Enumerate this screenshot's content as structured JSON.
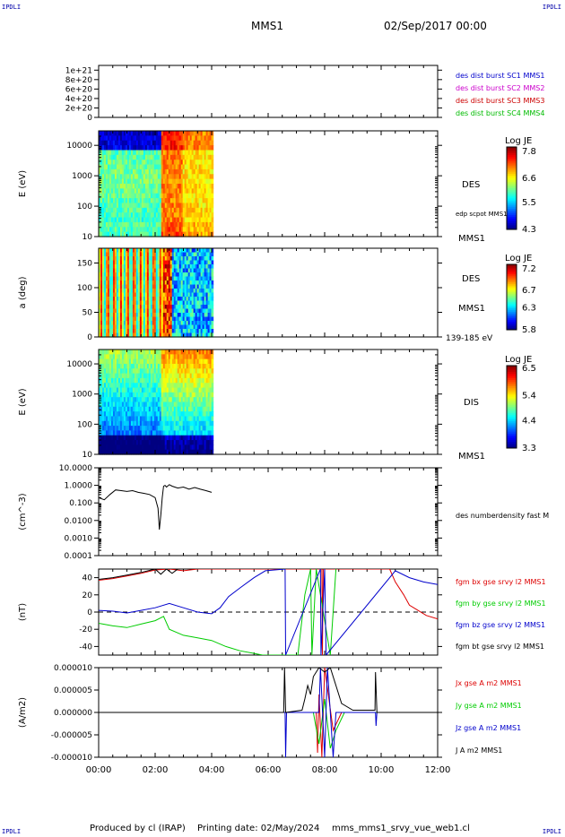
{
  "header": {
    "corner_label": "IPDLI",
    "spacecraft": "MMS1",
    "date": "02/Sep/2017 00:00"
  },
  "footer": {
    "produced": "Produced by cl (IRAP)",
    "printing": "Printing date: 02/May/2024",
    "file": "mms_mms1_srvy_vue_web1.cl"
  },
  "time_axis": {
    "range_hours": [
      0,
      12
    ],
    "ticks": [
      "00:00",
      "02:00",
      "04:00",
      "06:00",
      "08:00",
      "10:00",
      "12:00"
    ]
  },
  "chart_data": [
    {
      "type": "line",
      "id": "burst",
      "ylim": [
        0,
        1.1e+21
      ],
      "yticks": [
        0,
        2e+20,
        4e+20,
        6e+20,
        8e+20,
        1e+21
      ],
      "ytick_labels": [
        "0",
        "2e+20",
        "4e+20",
        "6e+20",
        "8e+20",
        "1e+21"
      ],
      "zero_line": "dashed",
      "legend": [
        {
          "name": "des dist burst SC1 MMS1",
          "color": "#0000cc"
        },
        {
          "name": "des dist burst SC2 MMS2",
          "color": "#cc00cc"
        },
        {
          "name": "des dist burst SC3 MMS3",
          "color": "#cc0000"
        },
        {
          "name": "des dist burst SC4 MMS4",
          "color": "#00bb00"
        }
      ]
    },
    {
      "type": "heatmap",
      "id": "des-energy",
      "ylabel": "E (eV)",
      "scale": "log",
      "ylim": [
        10,
        30000
      ],
      "ytick_labels": [
        "10",
        "100",
        "1000",
        "10000"
      ],
      "yticks": [
        10,
        100,
        1000,
        10000
      ],
      "x_extent_hours": [
        0,
        4.05
      ],
      "right_labels": [
        "DES",
        "edp scpot MMS1",
        "MMS1"
      ],
      "colorbar": {
        "title": "Log JE",
        "min": 4.3,
        "max": 8.0,
        "labels": [
          "7.8",
          "6.6",
          "5.5",
          "4.3"
        ],
        "label_values": [
          7.8,
          6.6,
          5.5,
          4.3
        ]
      }
    },
    {
      "type": "heatmap",
      "id": "des-pitch",
      "ylabel": "a (deg)",
      "ylim": [
        0,
        180
      ],
      "yticks": [
        0,
        50,
        100,
        150
      ],
      "ytick_labels": [
        "0",
        "50",
        "100",
        "150"
      ],
      "x_extent_hours": [
        0,
        4.05
      ],
      "right_labels": [
        "DES",
        "MMS1",
        "139-185 eV"
      ],
      "colorbar": {
        "title": "Log JE",
        "min": 5.8,
        "max": 7.3,
        "labels": [
          "7.2",
          "6.7",
          "6.3",
          "5.8"
        ],
        "label_values": [
          7.2,
          6.7,
          6.3,
          5.8
        ]
      }
    },
    {
      "type": "heatmap",
      "id": "dis-energy",
      "ylabel": "E (eV)",
      "scale": "log",
      "ylim": [
        10,
        30000
      ],
      "yticks": [
        10,
        100,
        1000,
        10000
      ],
      "ytick_labels": [
        "10",
        "100",
        "1000",
        "10000"
      ],
      "x_extent_hours": [
        0,
        4.05
      ],
      "right_labels": [
        "DIS",
        "MMS1"
      ],
      "colorbar": {
        "title": "Log JE",
        "min": 3.3,
        "max": 6.6,
        "labels": [
          "6.5",
          "5.4",
          "4.4",
          "3.3"
        ],
        "label_values": [
          6.5,
          5.4,
          4.4,
          3.3
        ]
      }
    },
    {
      "type": "line",
      "id": "density",
      "ylabel": "(cm^-3)",
      "scale": "log",
      "ylim": [
        0.0001,
        10
      ],
      "yticks": [
        0.0001,
        0.001,
        0.01,
        0.1,
        1,
        10
      ],
      "ytick_labels": [
        "0.0001",
        "0.0010",
        "0.0100",
        "0.100",
        "1.0000",
        "10.0000"
      ],
      "series": [
        {
          "name": "des numberdensity fast M",
          "color": "#000000",
          "x": [
            0.0,
            0.2,
            0.4,
            0.6,
            0.8,
            1.0,
            1.2,
            1.4,
            1.6,
            1.8,
            2.0,
            2.1,
            2.15,
            2.2,
            2.25,
            2.3,
            2.35,
            2.4,
            2.5,
            2.6,
            2.8,
            3.0,
            3.2,
            3.4,
            3.6,
            3.8,
            4.0
          ],
          "y": [
            0.2,
            0.15,
            0.3,
            0.55,
            0.5,
            0.45,
            0.5,
            0.4,
            0.35,
            0.3,
            0.2,
            0.05,
            0.003,
            0.02,
            0.2,
            0.9,
            1.0,
            0.8,
            1.1,
            0.9,
            0.7,
            0.8,
            0.6,
            0.75,
            0.6,
            0.5,
            0.4
          ]
        }
      ]
    },
    {
      "type": "line",
      "id": "bfield",
      "ylabel": "(nT)",
      "ylim": [
        -50,
        50
      ],
      "yticks": [
        -40,
        -20,
        0,
        20,
        40
      ],
      "ytick_labels": [
        "-40",
        "-20",
        "0",
        "20",
        "40"
      ],
      "zero_line": "dashed",
      "series": [
        {
          "name": "fgm bx gse srvy l2 MMS1",
          "color": "#dd0000",
          "x": [
            0,
            0.5,
            1.0,
            1.5,
            2.0,
            2.5,
            3.0,
            3.5,
            4.0,
            4.2,
            7.9,
            7.92,
            7.95,
            10.3,
            10.5,
            10.8,
            11.0,
            11.3,
            11.6,
            12.0
          ],
          "y": [
            37,
            39,
            42,
            45,
            49,
            50,
            48,
            50,
            50,
            50,
            50,
            -50,
            50,
            50,
            35,
            20,
            8,
            2,
            -4,
            -8
          ]
        },
        {
          "name": "fgm by gse srvy l2 MMS1",
          "color": "#00cc00",
          "x": [
            0,
            0.5,
            1.0,
            1.5,
            2.0,
            2.3,
            2.5,
            3.0,
            3.5,
            4.0,
            4.5,
            5.0,
            5.5,
            5.8,
            7.05,
            7.3,
            7.5,
            7.55,
            7.7,
            8.2,
            8.4
          ],
          "y": [
            -13,
            -16,
            -18,
            -14,
            -10,
            -5,
            -20,
            -27,
            -30,
            -33,
            -40,
            -45,
            -48,
            -50,
            -50,
            20,
            50,
            -50,
            50,
            -50,
            50
          ]
        },
        {
          "name": "fgm bz gse srvy l2 MMS1",
          "color": "#0000cc",
          "x": [
            0,
            0.5,
            1.0,
            1.5,
            2.0,
            2.5,
            3.0,
            3.5,
            4.0,
            4.3,
            4.6,
            5.0,
            5.5,
            5.9,
            6.6,
            6.62,
            7.85,
            7.87,
            8.0,
            8.05,
            10.5,
            11.0,
            11.5,
            12.0
          ],
          "y": [
            2,
            1,
            -1,
            2,
            5,
            10,
            5,
            0,
            -2,
            5,
            18,
            28,
            40,
            48,
            50,
            -50,
            50,
            -50,
            50,
            -50,
            48,
            40,
            35,
            32
          ]
        },
        {
          "name": "fgm bt gse srvy l2 MMS1",
          "color": "#000000",
          "x": [
            0,
            0.5,
            1.0,
            1.5,
            2.0,
            2.2,
            2.4,
            2.6,
            2.8,
            3.0
          ],
          "y": [
            38,
            40,
            43,
            46,
            50,
            44,
            50,
            45,
            50,
            50
          ]
        }
      ]
    },
    {
      "type": "line",
      "id": "current",
      "ylabel": "(A/m2)",
      "ylim": [
        -1e-05,
        1e-05
      ],
      "yticks": [
        -1e-05,
        -5e-06,
        0,
        5e-06,
        1e-05
      ],
      "ytick_labels": [
        "-0.000010",
        "-0.000005",
        "0.000000",
        "0.000005",
        "0.000010"
      ],
      "series": [
        {
          "name": "Jx gse A m2 MMS1",
          "color": "#dd0000",
          "x": [
            0,
            7.7,
            7.75,
            7.8,
            7.9,
            8.0,
            8.3,
            8.6,
            12
          ],
          "y": [
            0,
            0,
            -9e-06,
            4e-06,
            -1e-05,
            1e-05,
            -4e-06,
            0,
            0
          ]
        },
        {
          "name": "Jy gse A m2 MMS1",
          "color": "#00cc00",
          "x": [
            0,
            7.6,
            7.8,
            8.0,
            8.2,
            8.4,
            8.7,
            12
          ],
          "y": [
            0,
            0,
            -7e-06,
            3e-06,
            -8e-06,
            -4e-06,
            0,
            0
          ]
        },
        {
          "name": "Jz gse A m2 MMS1",
          "color": "#0000cc",
          "x": [
            0,
            6.6,
            6.62,
            6.65,
            7.8,
            7.85,
            8.0,
            8.1,
            8.3,
            8.4,
            9.8,
            9.82,
            9.85,
            12
          ],
          "y": [
            0,
            0,
            -1e-05,
            0,
            0,
            1e-05,
            -1e-05,
            1e-05,
            -1e-05,
            0,
            0,
            -3e-06,
            0,
            0
          ]
        },
        {
          "name": "J A m2 MMS1",
          "color": "#000000",
          "x": [
            0,
            6.55,
            6.58,
            6.62,
            7.2,
            7.3,
            7.4,
            7.5,
            7.6,
            7.8,
            8.0,
            8.2,
            8.4,
            8.6,
            9.0,
            9.78,
            9.8,
            9.85,
            12
          ],
          "y": [
            0,
            0,
            1e-05,
            0,
            5e-07,
            3e-06,
            6e-06,
            4e-06,
            8e-06,
            1e-05,
            9e-06,
            1e-05,
            6e-06,
            2e-06,
            5e-07,
            5e-07,
            9e-06,
            0,
            0
          ]
        }
      ]
    }
  ]
}
